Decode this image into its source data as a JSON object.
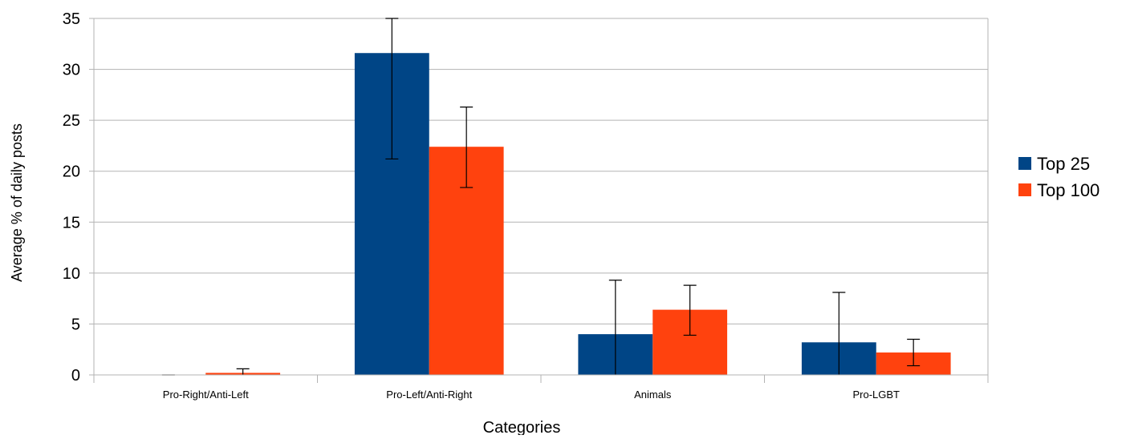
{
  "chart_data": {
    "type": "bar",
    "title": "",
    "xlabel": "Categories",
    "ylabel": "Average % of daily posts",
    "categories": [
      "Pro-Right/Anti-Left",
      "Pro-Left/Anti-Right",
      "Animals",
      "Pro-LGBT"
    ],
    "series": [
      {
        "name": "Top 25",
        "color": "#004586",
        "values": [
          0,
          31.6,
          4.0,
          3.2
        ],
        "error_low": [
          0,
          21.2,
          0,
          0
        ],
        "error_high": [
          0,
          35.0,
          9.3,
          8.1
        ]
      },
      {
        "name": "Top 100",
        "color": "#ff420e",
        "values": [
          0.2,
          22.4,
          6.4,
          2.2
        ],
        "error_low": [
          0,
          18.4,
          3.9,
          0.9
        ],
        "error_high": [
          0.6,
          26.3,
          8.8,
          3.5
        ]
      }
    ],
    "ylim": [
      0,
      35
    ],
    "yticks": [
      0,
      5,
      10,
      15,
      20,
      25,
      30,
      35
    ],
    "grid": true,
    "legend_position": "right"
  }
}
